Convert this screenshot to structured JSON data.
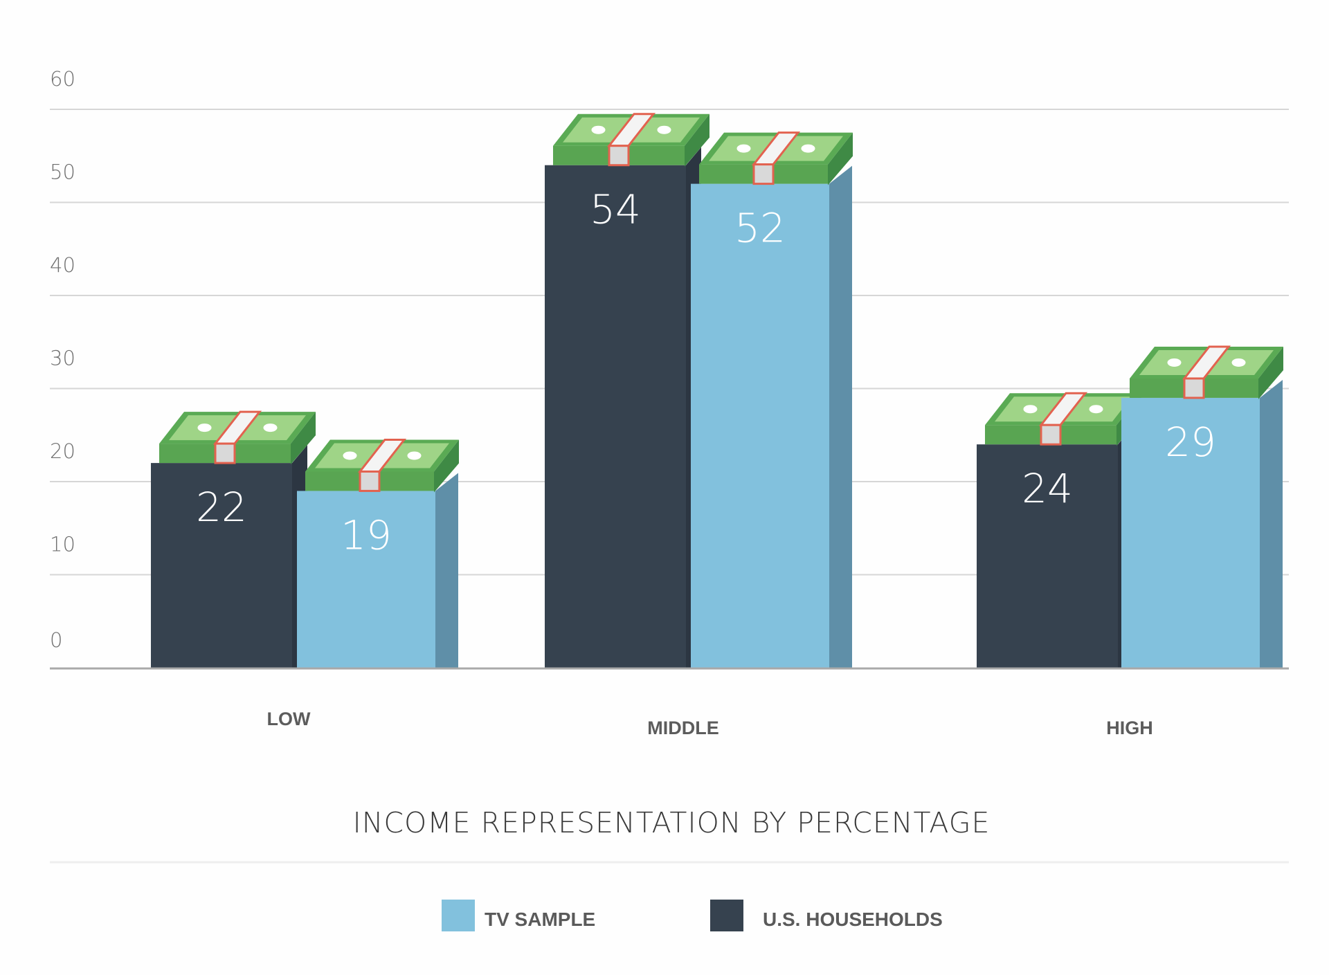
{
  "chart_data": {
    "type": "bar",
    "title": "INCOME REPRESENTATION BY PERCENTAGE",
    "categories": [
      "LOW",
      "MIDDLE",
      "HIGH"
    ],
    "series": [
      {
        "name": "U.S. HOUSEHOLDS",
        "values": [
          22,
          54,
          24
        ],
        "color": "#36424f",
        "side_color": "#2c3642"
      },
      {
        "name": "TV SAMPLE",
        "values": [
          19,
          52,
          29
        ],
        "color": "#82c1dd",
        "side_color": "#5f8fa8"
      }
    ],
    "ylim": [
      0,
      60
    ],
    "yticks": [
      "0",
      "10",
      "20",
      "30",
      "40",
      "50",
      "60"
    ],
    "grid": true,
    "legend_position": "bottom",
    "legend": [
      {
        "label": "TV SAMPLE",
        "color": "#82c1dd"
      },
      {
        "label": "U.S. HOUSEHOLDS",
        "color": "#36424f"
      }
    ],
    "bar_top_icon": "money-stack-icon"
  }
}
